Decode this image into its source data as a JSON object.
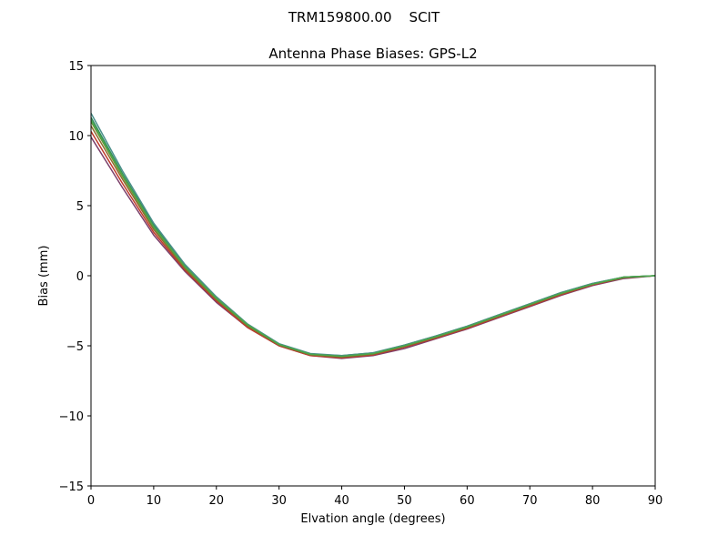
{
  "figure": {
    "suptitle": "TRM159800.00    SCIT"
  },
  "chart_data": {
    "type": "line",
    "title": "Antenna Phase Biases: GPS-L2",
    "xlabel": "Elvation angle (degrees)",
    "ylabel": "Bias (mm)",
    "xlim": [
      0,
      90
    ],
    "ylim": [
      -15,
      15
    ],
    "xticks": [
      0,
      10,
      20,
      30,
      40,
      50,
      60,
      70,
      80,
      90
    ],
    "yticks": [
      -15,
      -10,
      -5,
      0,
      5,
      10,
      15
    ],
    "xtick_labels": [
      "0",
      "10",
      "20",
      "30",
      "40",
      "50",
      "60",
      "70",
      "80",
      "90"
    ],
    "ytick_labels": [
      "−15",
      "−10",
      "−5",
      "0",
      "5",
      "10",
      "15"
    ],
    "grid": false,
    "legend": false,
    "x": [
      0,
      5,
      10,
      15,
      20,
      25,
      30,
      35,
      40,
      45,
      50,
      55,
      60,
      65,
      70,
      75,
      80,
      85,
      90
    ],
    "series": [
      {
        "color": "#7b3f6a",
        "values": [
          9.9,
          6.3,
          2.9,
          0.3,
          -1.9,
          -3.7,
          -5.0,
          -5.7,
          -5.9,
          -5.7,
          -5.2,
          -4.5,
          -3.8,
          -3.0,
          -2.2,
          -1.4,
          -0.7,
          -0.2,
          0.0
        ]
      },
      {
        "color": "#c0392b",
        "values": [
          10.3,
          6.6,
          3.1,
          0.4,
          -1.8,
          -3.7,
          -5.0,
          -5.7,
          -5.85,
          -5.65,
          -5.1,
          -4.45,
          -3.75,
          -2.95,
          -2.15,
          -1.35,
          -0.65,
          -0.15,
          0.0
        ]
      },
      {
        "color": "#8b6b2e",
        "values": [
          10.7,
          6.9,
          3.3,
          0.5,
          -1.7,
          -3.6,
          -4.95,
          -5.65,
          -5.8,
          -5.6,
          -5.05,
          -4.4,
          -3.7,
          -2.9,
          -2.1,
          -1.3,
          -0.6,
          -0.15,
          0.0
        ]
      },
      {
        "color": "#6f8f2f",
        "values": [
          11.0,
          7.1,
          3.45,
          0.6,
          -1.65,
          -3.55,
          -4.9,
          -5.6,
          -5.75,
          -5.55,
          -5.0,
          -4.35,
          -3.65,
          -2.85,
          -2.05,
          -1.25,
          -0.6,
          -0.1,
          0.0
        ]
      },
      {
        "color": "#2e8b57",
        "values": [
          11.3,
          7.3,
          3.6,
          0.7,
          -1.6,
          -3.5,
          -4.9,
          -5.6,
          -5.7,
          -5.5,
          -4.95,
          -4.3,
          -3.6,
          -2.8,
          -2.0,
          -1.2,
          -0.55,
          -0.1,
          0.0
        ]
      },
      {
        "color": "#4a8f8a",
        "values": [
          11.6,
          7.5,
          3.75,
          0.8,
          -1.5,
          -3.45,
          -4.85,
          -5.55,
          -5.7,
          -5.5,
          -4.95,
          -4.3,
          -3.6,
          -2.8,
          -2.0,
          -1.2,
          -0.55,
          -0.1,
          0.0
        ]
      },
      {
        "color": "#4ca64c",
        "values": [
          11.1,
          7.2,
          3.5,
          0.65,
          -1.6,
          -3.5,
          -4.9,
          -5.6,
          -5.75,
          -5.55,
          -5.0,
          -4.35,
          -3.65,
          -2.85,
          -2.05,
          -1.25,
          -0.6,
          -0.1,
          0.0
        ]
      }
    ]
  }
}
